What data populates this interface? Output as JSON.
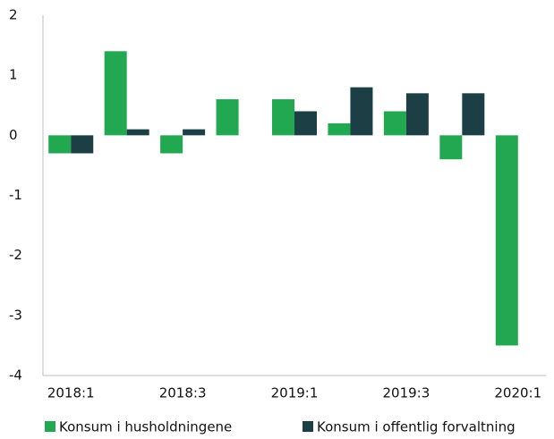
{
  "chart_data": {
    "type": "bar",
    "categories": [
      "2018:1",
      null,
      "2018:3",
      null,
      "2019:1",
      null,
      "2019:3",
      null,
      "2020:1"
    ],
    "series": [
      {
        "name": "Konsum i husholdningene",
        "color": "#22a851",
        "values": [
          -0.3,
          1.4,
          -0.3,
          0.6,
          0.6,
          0.2,
          0.4,
          -0.4,
          -3.5
        ]
      },
      {
        "name": "Konsum i offentlig forvaltning",
        "color": "#1b3f44",
        "values": [
          -0.3,
          0.1,
          0.1,
          0,
          0.4,
          0.8,
          0.7,
          0.7,
          0
        ]
      }
    ],
    "ylim": [
      -4,
      2
    ],
    "yticks": [
      -4,
      -3,
      -2,
      -1,
      0,
      1,
      2
    ],
    "grid": false,
    "legend": "bottom"
  }
}
